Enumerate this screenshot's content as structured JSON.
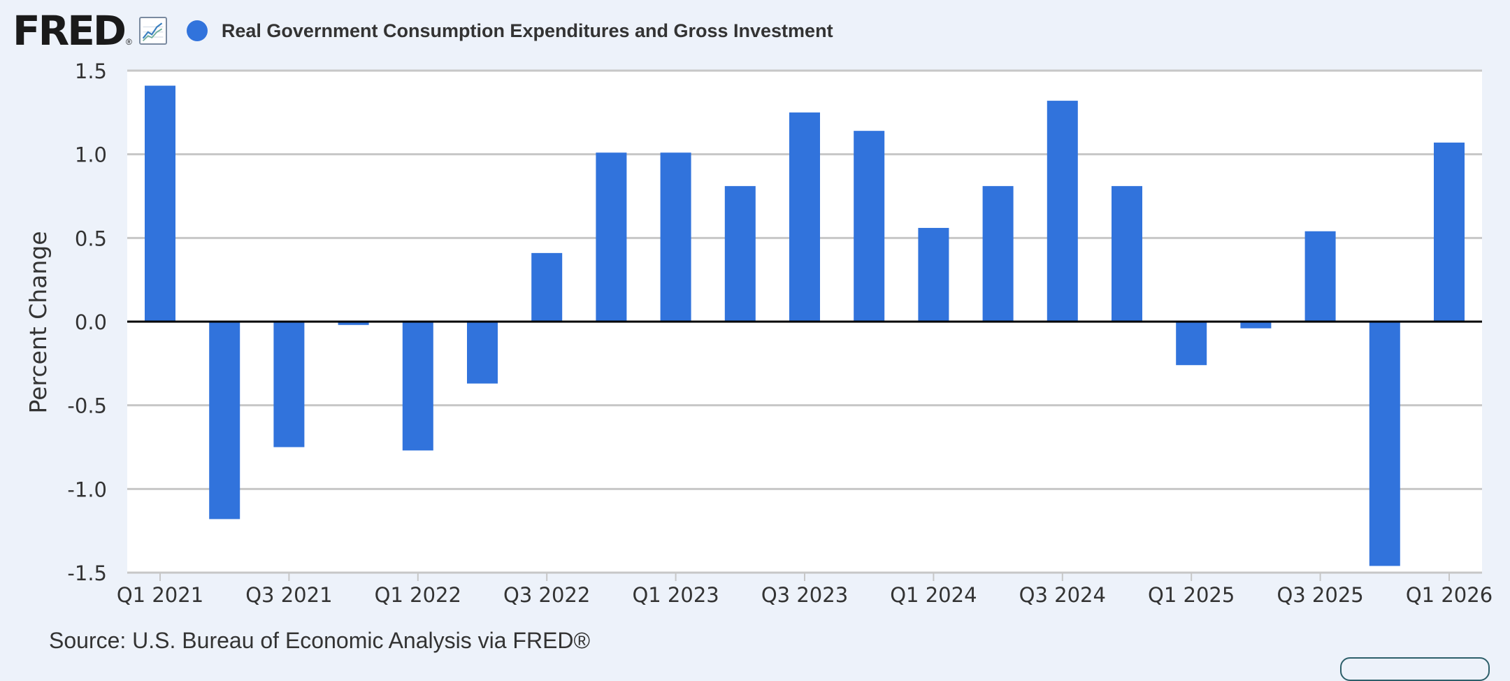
{
  "header": {
    "logo_text": "FRED",
    "logo_reg": "®",
    "legend_label": "Real Government Consumption Expenditures and Gross Investment",
    "legend_color": "#3173dc"
  },
  "source_text": "Source: U.S. Bureau of Economic Analysis via FRED®",
  "chart_data": {
    "type": "bar",
    "title": "",
    "xlabel": "",
    "ylabel": "Percent Change",
    "ylim": [
      -1.5,
      1.5
    ],
    "yticks": [
      "1.5",
      "1.0",
      "0.5",
      "0.0",
      "-0.5",
      "-1.0",
      "-1.5"
    ],
    "grid": true,
    "legend": "top-left",
    "bar_color": "#3173dc",
    "categories": [
      "Q1 2021",
      "Q2 2021",
      "Q3 2021",
      "Q4 2021",
      "Q1 2022",
      "Q2 2022",
      "Q3 2022",
      "Q4 2022",
      "Q1 2023",
      "Q2 2023",
      "Q3 2023",
      "Q4 2023",
      "Q1 2024",
      "Q2 2024",
      "Q3 2024",
      "Q4 2024",
      "Q1 2025",
      "Q2 2025",
      "Q3 2025",
      "Q4 2025",
      "Q1 2026"
    ],
    "x_tick_labels": [
      "Q1 2021",
      "Q3 2021",
      "Q1 2022",
      "Q3 2022",
      "Q1 2023",
      "Q3 2023",
      "Q1 2024",
      "Q3 2024",
      "Q1 2025",
      "Q3 2025",
      "Q1 2026"
    ],
    "series": [
      {
        "name": "Real Government Consumption Expenditures and Gross Investment",
        "values": [
          1.41,
          -1.18,
          -0.75,
          -0.02,
          -0.77,
          -0.37,
          0.41,
          1.01,
          1.01,
          0.81,
          1.25,
          1.14,
          0.56,
          0.81,
          1.32,
          0.81,
          -0.26,
          -0.04,
          0.54,
          -1.46,
          1.07
        ]
      }
    ]
  }
}
